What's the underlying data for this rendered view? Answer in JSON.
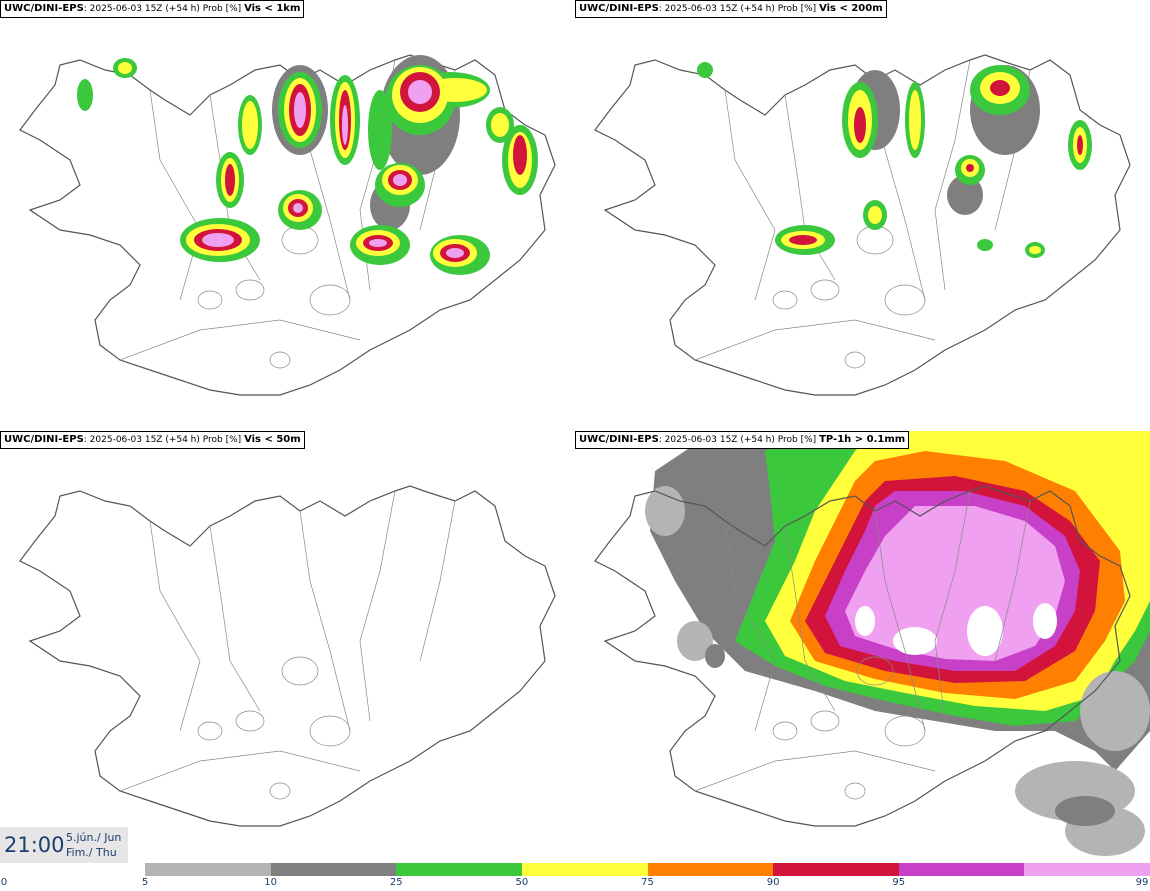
{
  "panels": [
    {
      "source": "UWC/DINI-EPS",
      "run": "2025-06-03 15Z (+54 h) Prob [%]",
      "variable": "Vis < 1km"
    },
    {
      "source": "UWC/DINI-EPS",
      "run": "2025-06-03 15Z (+54 h) Prob [%]",
      "variable": "Vis < 200m"
    },
    {
      "source": "UWC/DINI-EPS",
      "run": "2025-06-03 15Z (+54 h) Prob [%]",
      "variable": "Vis < 50m"
    },
    {
      "source": "UWC/DINI-EPS",
      "run": "2025-06-03 15Z (+54 h) Prob [%]",
      "variable": "TP-1h > 0.1mm"
    }
  ],
  "valid_time": {
    "time": "21:00",
    "date_local": "5.jún./ Jun",
    "weekday": "Fim./ Thu"
  },
  "legend": {
    "ticks": [
      "0",
      "5",
      "10",
      "25",
      "50",
      "75",
      "90",
      "95",
      "99"
    ],
    "colors": [
      "#b4b4b4",
      "#7f7f7f",
      "#3cc83c",
      "#ffff3c",
      "#ff7f00",
      "#d2143c",
      "#c840c8",
      "#f0a0f0"
    ]
  },
  "colors": {
    "land_outline": "#555555",
    "rivers": "#888888",
    "label_text": "#1c3d6e"
  }
}
